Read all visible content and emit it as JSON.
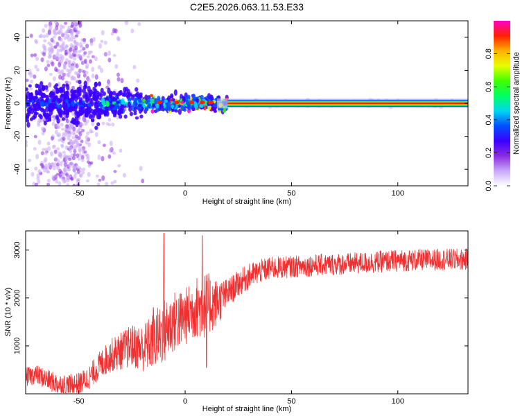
{
  "title": "C2E5.2026.063.11.53.E33",
  "chart_data": [
    {
      "type": "heatmap",
      "name": "spectrogram",
      "xlabel": "Height of straight line (km)",
      "ylabel": "Frequency (Hz)",
      "xlim": [
        -75,
        133
      ],
      "ylim": [
        -50,
        50
      ],
      "xticks": [
        -50,
        0,
        50,
        100
      ],
      "yticks": [
        -40,
        -20,
        0,
        20,
        40
      ],
      "colorbar": {
        "label": "Normalized spectral amplitude",
        "range": [
          0,
          1
        ],
        "ticks": [
          0.0,
          0.2,
          0.4,
          0.6,
          0.8
        ],
        "tick_labels": [
          "0.0",
          "0.2",
          "0.4",
          "0.6",
          "0.8"
        ],
        "colors": [
          "#ffffff",
          "#c8a8f8",
          "#8a2be2",
          "#3a00ff",
          "#0050ff",
          "#00d8f0",
          "#00ff60",
          "#40ff00",
          "#e8ff00",
          "#ffb000",
          "#ff2000",
          "#ff00c8"
        ]
      },
      "band_center_hz": 0,
      "scatter_region_km": [
        -75,
        -40
      ],
      "clean_band_start_km": 20
    },
    {
      "type": "line",
      "name": "snr",
      "xlabel": "Height of straight line (km)",
      "ylabel": "SNR (10 * v/v)",
      "xlim": [
        -75,
        133
      ],
      "ylim": [
        0,
        3400
      ],
      "xticks": [
        -50,
        0,
        50,
        100
      ],
      "yticks": [
        1000,
        2000,
        3000
      ],
      "color": "#f03030",
      "trend": {
        "x": [
          -75,
          -70,
          -65,
          -60,
          -55,
          -50,
          -45,
          -40,
          -35,
          -30,
          -25,
          -20,
          -15,
          -10,
          -5,
          0,
          5,
          10,
          15,
          20,
          25,
          30,
          35,
          40,
          50,
          60,
          70,
          80,
          90,
          100,
          110,
          120,
          133
        ],
        "y": [
          350,
          400,
          300,
          200,
          180,
          200,
          350,
          600,
          800,
          900,
          1000,
          950,
          1100,
          1300,
          1500,
          1600,
          1800,
          1850,
          1900,
          2100,
          2300,
          2450,
          2550,
          2620,
          2650,
          2680,
          2700,
          2720,
          2750,
          2780,
          2790,
          2800,
          2800
        ]
      },
      "noise_amplitude": {
        "x": [
          -75,
          -45,
          -35,
          -20,
          -10,
          0,
          10,
          20,
          35,
          50,
          133
        ],
        "y": [
          200,
          250,
          350,
          500,
          700,
          600,
          700,
          300,
          250,
          230,
          230
        ]
      },
      "spikes": [
        {
          "x": -10,
          "y": 3350
        },
        {
          "x": 8,
          "y": 3300
        },
        {
          "x": -15,
          "y": 1800
        },
        {
          "x": 10,
          "y": 550
        }
      ]
    }
  ]
}
